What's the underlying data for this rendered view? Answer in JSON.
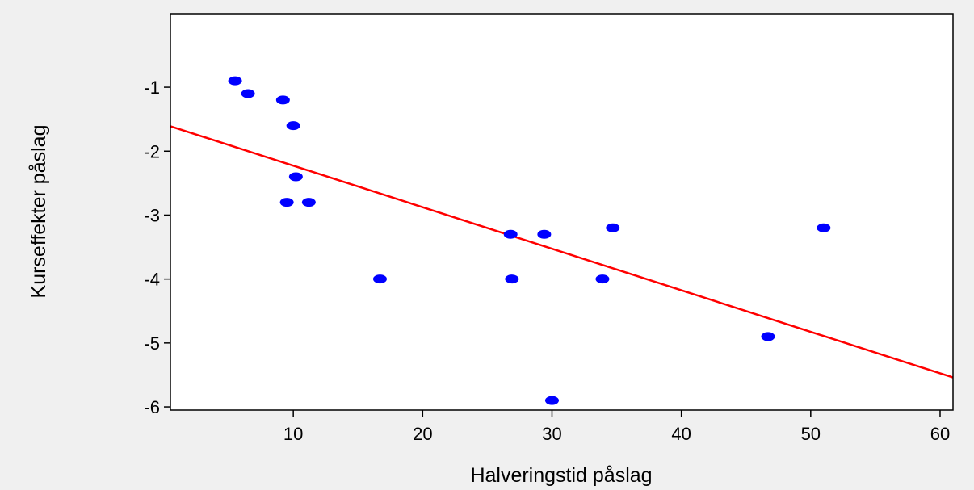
{
  "chart_data": {
    "type": "scatter",
    "title": "",
    "xlabel": "Halveringstid påslag",
    "ylabel": "Kurseffekter påslag",
    "xlim": [
      0.5,
      61
    ],
    "ylim": [
      -6.05,
      0.15
    ],
    "xticks": [
      10,
      20,
      30,
      40,
      50,
      60
    ],
    "yticks": [
      -1,
      -2,
      -3,
      -4,
      -5,
      -6
    ],
    "xtick_labels": [
      "10",
      "20",
      "30",
      "40",
      "50",
      "60"
    ],
    "ytick_labels": [
      "-1",
      "-2",
      "-3",
      "-4",
      "-5",
      "-6"
    ],
    "grid": false,
    "legend": "none",
    "series": [
      {
        "kind": "points",
        "color": "#0000ff",
        "x": [
          5.5,
          6.5,
          9.2,
          9.5,
          10.0,
          10.2,
          11.2,
          16.7,
          26.8,
          26.9,
          29.4,
          30.0,
          33.9,
          34.7,
          46.7,
          51.0
        ],
        "y": [
          -0.9,
          -1.1,
          -1.2,
          -2.8,
          -1.6,
          -2.4,
          -2.8,
          -4.0,
          -3.3,
          -4.0,
          -3.3,
          -5.9,
          -4.0,
          -3.2,
          -4.9,
          -3.2
        ]
      },
      {
        "kind": "fit-line",
        "color": "#ff0000",
        "x": [
          0.5,
          61
        ],
        "y": [
          -1.61,
          -5.54
        ]
      }
    ],
    "background": "#f0f0f0",
    "plot_background": "#ffffff"
  }
}
